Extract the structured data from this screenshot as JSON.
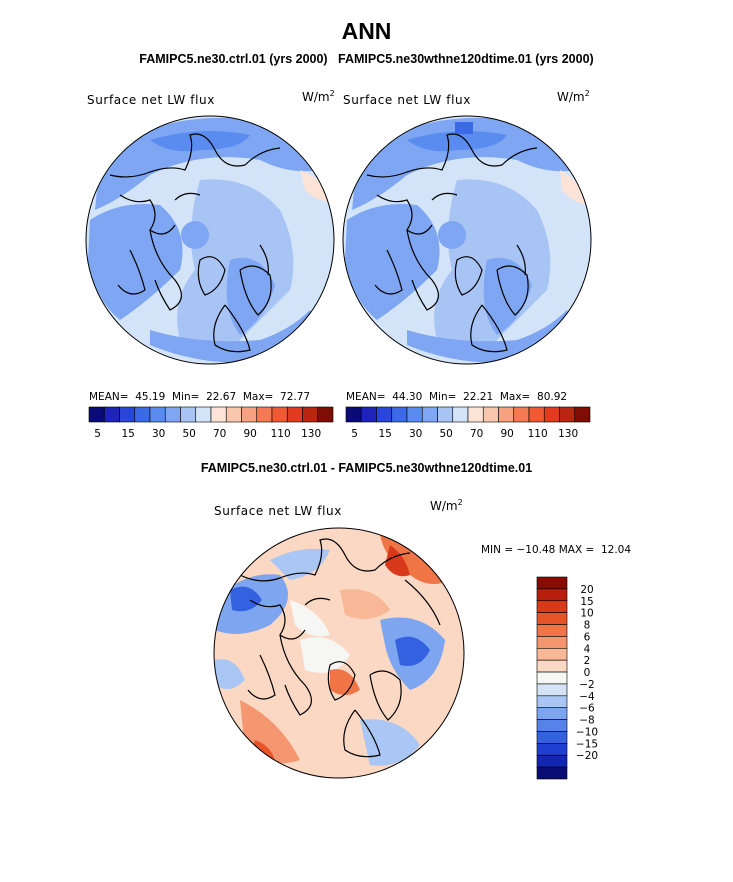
{
  "header": {
    "title": "ANN",
    "case_left": "FAMIPC5.ne30.ctrl.01 (yrs 2000)",
    "case_right": "FAMIPC5.ne30wthne120dtime.01 (yrs 2000)"
  },
  "panels": [
    {
      "label": "Surface net LW flux",
      "units_base": "W/m",
      "units_exp": "2",
      "mean_label": "MEAN=",
      "mean": "45.19",
      "min_label": "Min=",
      "min": "22.67",
      "max_label": "Max=",
      "max": "72.77"
    },
    {
      "label": "Surface net LW flux",
      "units_base": "W/m",
      "units_exp": "2",
      "mean_label": "MEAN=",
      "mean": "44.30",
      "min_label": "Min=",
      "min": "22.21",
      "max_label": "Max=",
      "max": "80.92"
    }
  ],
  "colorbar_top": {
    "colors": [
      "#0a0a78",
      "#1e23b9",
      "#2a46d8",
      "#3a6ae6",
      "#5a8cf0",
      "#7ea6f2",
      "#a8c4f5",
      "#d4e4f8",
      "#fbe4d7",
      "#f9c6ae",
      "#f7a17f",
      "#f47a53",
      "#ef5a32",
      "#e03c1d",
      "#b82611",
      "#7f0d06"
    ],
    "tick_labels": [
      "5",
      "15",
      "30",
      "50",
      "70",
      "90",
      "110",
      "130"
    ]
  },
  "difference": {
    "title": "FAMIPC5.ne30.ctrl.01 - FAMIPC5.ne30wthne120dtime.01",
    "label": "Surface net LW flux",
    "units_base": "W/m",
    "units_exp": "2",
    "min_label": "MIN =",
    "min": "−10.48",
    "max_label": "MAX =",
    "max": "12.04",
    "colorbar": {
      "colors": [
        "#8a0b04",
        "#b81e0d",
        "#d7391a",
        "#e65528",
        "#ef7446",
        "#f49670",
        "#f8b797",
        "#fbd8c3",
        "#f6f6f4",
        "#d5e3f7",
        "#a9c6f4",
        "#7ea6f0",
        "#5583e9",
        "#3461e0",
        "#1f3fd2",
        "#1226b1",
        "#0a0e74"
      ],
      "tick_labels": [
        "20",
        "15",
        "10",
        "8",
        "6",
        "4",
        "2",
        "0",
        "−2",
        "−4",
        "−6",
        "−8",
        "−10",
        "−15",
        "−20"
      ]
    }
  },
  "field_colors": {
    "ocean_high": "#d4e4f8",
    "mid": "#a8c4f5",
    "low": "#7ea6f2",
    "diff_pos": "#f9c6ae",
    "diff_neg": "#a9c6f4"
  }
}
